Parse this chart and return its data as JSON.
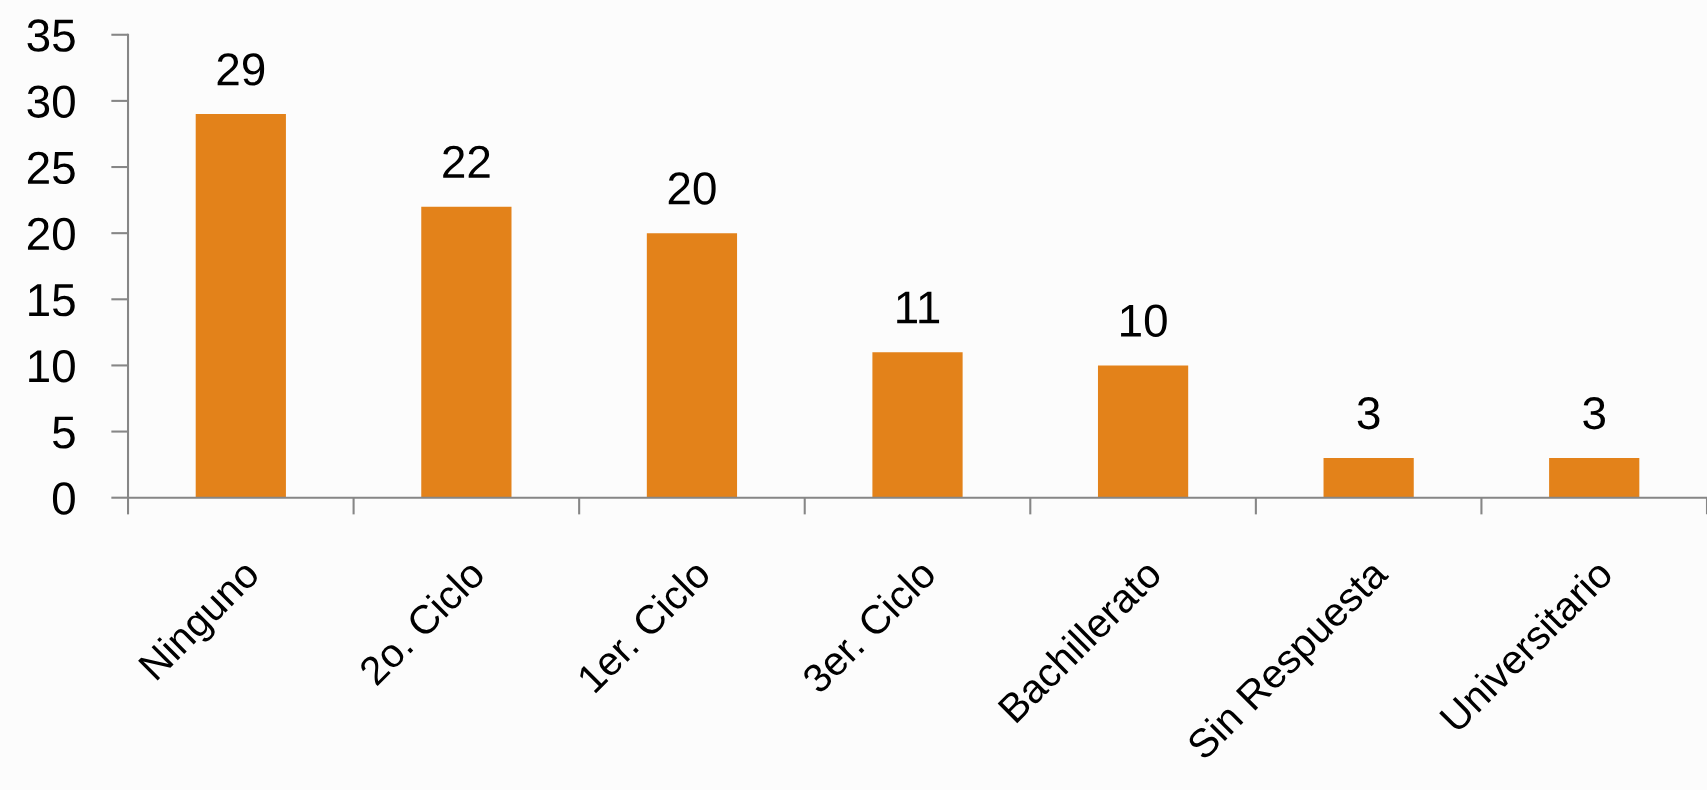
{
  "chart_data": {
    "type": "bar",
    "categories": [
      "Ninguno",
      "2o. Ciclo",
      "1er. Ciclo",
      "3er. Ciclo",
      "Bachillerato",
      "Sin Respuesta",
      "Universitario"
    ],
    "values": [
      29,
      22,
      20,
      11,
      10,
      3,
      3
    ],
    "color": "#e3821a",
    "ylim": [
      0,
      35
    ],
    "yticks": [
      0,
      5,
      10,
      15,
      20,
      25,
      30,
      35
    ],
    "data_labels": true
  }
}
